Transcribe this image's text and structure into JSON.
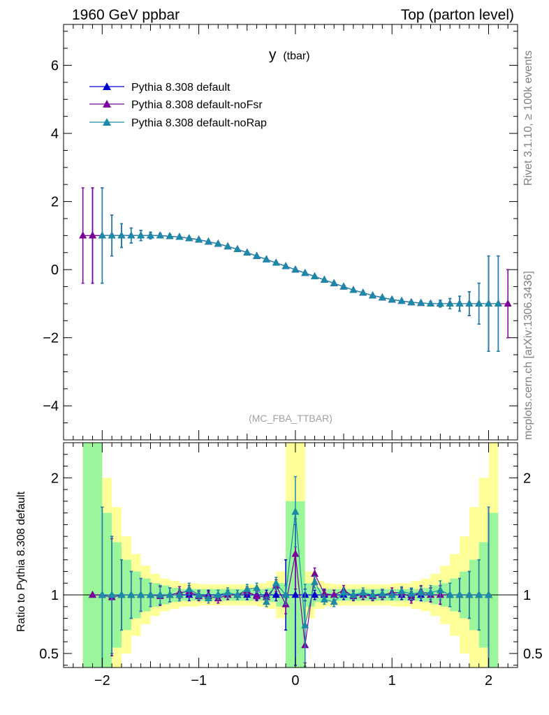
{
  "header": {
    "left": "1960 GeV ppbar",
    "right": "Top (parton level)"
  },
  "side_labels": {
    "top": "Rivet 3.1.10, ≥ 100k events",
    "bottom": "mcplots.cern.ch [arXiv:1306.3436]"
  },
  "plot_title": {
    "main": "y",
    "sub": "(tbar)"
  },
  "analysis_label": "(MC_FBA_TTBAR)",
  "ratio_ylabel": "Ratio to Pythia 8.308 default",
  "colors": {
    "default": "#0000cc",
    "noFsr": "#7b009a",
    "noRap": "#1a8aa6",
    "band_inner": "#9bf59b",
    "band_outer": "#ffff99"
  },
  "chart_data": [
    {
      "type": "line",
      "panel": "main",
      "xlim": [
        -2.4,
        2.3
      ],
      "ylim": [
        -5,
        7.2
      ],
      "yticks": [
        -4,
        -2,
        0,
        2,
        4,
        6
      ],
      "ytick_labels": [
        "−4",
        "−2",
        "0",
        "2",
        "4",
        "6"
      ],
      "legend_position": "top-left",
      "x": [
        -2.2,
        -2.1,
        -2.0,
        -1.9,
        -1.8,
        -1.7,
        -1.6,
        -1.5,
        -1.4,
        -1.3,
        -1.2,
        -1.1,
        -1.0,
        -0.9,
        -0.8,
        -0.7,
        -0.6,
        -0.5,
        -0.4,
        -0.3,
        -0.2,
        -0.1,
        0.0,
        0.1,
        0.2,
        0.3,
        0.4,
        0.5,
        0.6,
        0.7,
        0.8,
        0.9,
        1.0,
        1.1,
        1.2,
        1.3,
        1.4,
        1.5,
        1.6,
        1.7,
        1.8,
        1.9,
        2.0,
        2.1,
        2.2
      ],
      "series": [
        {
          "name": "Pythia 8.308 default",
          "marker": "triangle",
          "values": [
            null,
            1.0,
            1.0,
            1.0,
            1.0,
            1.0,
            1.0,
            1.0,
            1.0,
            0.98,
            0.96,
            0.92,
            0.88,
            0.82,
            0.76,
            0.68,
            0.6,
            0.5,
            0.4,
            0.3,
            0.2,
            0.1,
            0.0,
            -0.1,
            -0.2,
            -0.3,
            -0.4,
            -0.5,
            -0.6,
            -0.68,
            -0.76,
            -0.82,
            -0.88,
            -0.92,
            -0.96,
            -0.98,
            -1.0,
            -1.0,
            -1.0,
            -1.0,
            -1.0,
            -1.0,
            -1.0,
            -1.0,
            null
          ],
          "errors": [
            null,
            1.4,
            1.4,
            0.6,
            0.35,
            0.22,
            0.15,
            0.1,
            0.06,
            0.05,
            0.04,
            0.04,
            0.04,
            0.04,
            0.04,
            0.04,
            0.04,
            0.04,
            0.04,
            0.04,
            0.04,
            0.04,
            0.04,
            0.04,
            0.04,
            0.04,
            0.04,
            0.04,
            0.04,
            0.04,
            0.04,
            0.04,
            0.04,
            0.04,
            0.04,
            0.05,
            0.06,
            0.1,
            0.15,
            0.22,
            0.35,
            0.6,
            1.4,
            1.4,
            null
          ]
        },
        {
          "name": "Pythia 8.308 default-noFsr",
          "marker": "triangle",
          "values": [
            1.0,
            1.0,
            1.0,
            1.0,
            1.0,
            1.0,
            1.0,
            1.0,
            1.0,
            0.98,
            0.96,
            0.92,
            0.88,
            0.82,
            0.76,
            0.68,
            0.6,
            0.5,
            0.4,
            0.3,
            0.2,
            0.1,
            0.0,
            -0.1,
            -0.2,
            -0.3,
            -0.4,
            -0.5,
            -0.6,
            -0.68,
            -0.76,
            -0.82,
            -0.88,
            -0.92,
            -0.96,
            -0.98,
            -1.0,
            -1.0,
            -1.0,
            -1.0,
            -1.0,
            -1.0,
            -1.0,
            -1.0,
            -1.0
          ],
          "errors": [
            1.4,
            1.4,
            1.4,
            0.6,
            0.35,
            0.22,
            0.15,
            0.1,
            0.06,
            0.05,
            0.04,
            0.04,
            0.04,
            0.04,
            0.04,
            0.04,
            0.04,
            0.04,
            0.04,
            0.04,
            0.04,
            0.04,
            0.04,
            0.04,
            0.04,
            0.04,
            0.04,
            0.04,
            0.04,
            0.04,
            0.04,
            0.04,
            0.04,
            0.04,
            0.04,
            0.05,
            0.06,
            0.1,
            0.15,
            0.22,
            0.35,
            0.6,
            1.4,
            1.4,
            1.0
          ]
        },
        {
          "name": "Pythia 8.308 default-noRap",
          "marker": "triangle",
          "values": [
            null,
            null,
            1.0,
            1.0,
            1.0,
            1.0,
            1.0,
            1.0,
            1.0,
            0.98,
            0.96,
            0.92,
            0.88,
            0.82,
            0.76,
            0.68,
            0.6,
            0.5,
            0.4,
            0.3,
            0.2,
            0.1,
            0.0,
            -0.1,
            -0.2,
            -0.3,
            -0.4,
            -0.5,
            -0.6,
            -0.68,
            -0.76,
            -0.82,
            -0.88,
            -0.92,
            -0.96,
            -0.98,
            -1.0,
            -1.0,
            -1.0,
            -1.0,
            -1.0,
            -1.0,
            -1.0,
            -1.0,
            null
          ],
          "errors": [
            null,
            null,
            1.4,
            0.6,
            0.35,
            0.22,
            0.15,
            0.1,
            0.06,
            0.05,
            0.04,
            0.04,
            0.04,
            0.04,
            0.04,
            0.04,
            0.04,
            0.04,
            0.04,
            0.04,
            0.04,
            0.04,
            0.04,
            0.04,
            0.04,
            0.04,
            0.04,
            0.04,
            0.04,
            0.04,
            0.04,
            0.04,
            0.04,
            0.04,
            0.04,
            0.05,
            0.06,
            0.1,
            0.15,
            0.22,
            0.35,
            0.6,
            1.4,
            1.4,
            null
          ]
        }
      ]
    },
    {
      "type": "line",
      "panel": "ratio",
      "xlim": [
        -2.4,
        2.3
      ],
      "ylim": [
        0.38,
        2.3
      ],
      "yticks": [
        0.5,
        1,
        2
      ],
      "ytick_labels": [
        "0.5",
        "1",
        "2"
      ],
      "xticks": [
        -2,
        -1,
        0,
        1,
        2
      ],
      "xtick_labels": [
        "−2",
        "−1",
        "0",
        "1",
        "2"
      ],
      "x": [
        -2.1,
        -2.0,
        -1.9,
        -1.8,
        -1.7,
        -1.6,
        -1.5,
        -1.4,
        -1.3,
        -1.2,
        -1.1,
        -1.0,
        -0.9,
        -0.8,
        -0.7,
        -0.6,
        -0.5,
        -0.4,
        -0.3,
        -0.2,
        -0.1,
        0.0,
        0.1,
        0.2,
        0.3,
        0.4,
        0.5,
        0.6,
        0.7,
        0.8,
        0.9,
        1.0,
        1.1,
        1.2,
        1.3,
        1.4,
        1.5,
        1.6,
        1.7,
        1.8,
        1.9,
        2.0
      ],
      "bands": {
        "edges": [
          -2.2,
          -2.1,
          -2.0,
          -1.9,
          -1.8,
          -1.7,
          -1.6,
          -1.5,
          -1.4,
          -1.3,
          -1.2,
          -1.1,
          -1.0,
          -0.9,
          -0.8,
          -0.7,
          -0.6,
          -0.5,
          -0.4,
          -0.3,
          -0.2,
          -0.1,
          0.0,
          0.1,
          0.2,
          0.3,
          0.4,
          0.5,
          0.6,
          0.7,
          0.8,
          0.9,
          1.0,
          1.1,
          1.2,
          1.3,
          1.4,
          1.5,
          1.6,
          1.7,
          1.8,
          1.9,
          2.0,
          2.1
        ],
        "inner_halfwidth": [
          2.0,
          2.0,
          0.7,
          0.45,
          0.3,
          0.2,
          0.14,
          0.1,
          0.08,
          0.06,
          0.05,
          0.05,
          0.05,
          0.05,
          0.05,
          0.05,
          0.05,
          0.05,
          0.05,
          0.06,
          0.1,
          0.8,
          0.8,
          0.1,
          0.06,
          0.05,
          0.05,
          0.05,
          0.05,
          0.05,
          0.05,
          0.05,
          0.05,
          0.05,
          0.05,
          0.06,
          0.08,
          0.1,
          0.14,
          0.2,
          0.3,
          0.45,
          0.7,
          2.0
        ],
        "outer_halfwidth": [
          2.0,
          2.0,
          1.0,
          0.75,
          0.5,
          0.35,
          0.25,
          0.18,
          0.14,
          0.12,
          0.1,
          0.1,
          0.09,
          0.09,
          0.09,
          0.09,
          0.09,
          0.09,
          0.1,
          0.12,
          0.2,
          2.0,
          2.0,
          0.2,
          0.12,
          0.1,
          0.09,
          0.09,
          0.09,
          0.09,
          0.09,
          0.09,
          0.1,
          0.1,
          0.12,
          0.14,
          0.18,
          0.25,
          0.35,
          0.5,
          0.75,
          1.0,
          2.0,
          2.0
        ]
      },
      "series": [
        {
          "name": "Pythia 8.308 default",
          "values": [
            1,
            1,
            1,
            1,
            1,
            1,
            1,
            1,
            1,
            1,
            1,
            1,
            1,
            1,
            1,
            1,
            1,
            1,
            1,
            1,
            1,
            1,
            1,
            1,
            1,
            1,
            1,
            1,
            1,
            1,
            1,
            1,
            1,
            1,
            1,
            1,
            1,
            1,
            1,
            1,
            1,
            1
          ],
          "errors": [
            0.0,
            0.75,
            0.5,
            0.3,
            0.2,
            0.14,
            0.1,
            0.08,
            0.06,
            0.05,
            0.05,
            0.04,
            0.04,
            0.04,
            0.04,
            0.04,
            0.04,
            0.04,
            0.04,
            0.05,
            0.3,
            0.6,
            0.05,
            0.04,
            0.04,
            0.04,
            0.04,
            0.04,
            0.04,
            0.04,
            0.04,
            0.04,
            0.04,
            0.05,
            0.05,
            0.06,
            0.08,
            0.1,
            0.14,
            0.2,
            0.3,
            0.75
          ]
        },
        {
          "name": "Pythia 8.308 default-noFsr",
          "values": [
            1.0,
            1.0,
            0.98,
            1.0,
            1.0,
            1.0,
            1.0,
            0.99,
            1.0,
            1.02,
            1.03,
            0.99,
            0.99,
            0.97,
            1.0,
            1.0,
            1.03,
            0.99,
            0.98,
            1.08,
            0.92,
            1.35,
            0.57,
            1.18,
            1.01,
            1.0,
            1.04,
            0.99,
            1.0,
            0.99,
            1.0,
            1.02,
            1.02,
            0.98,
            1.03,
            1.0,
            1.0,
            1.0,
            1.0,
            1.0,
            1.0,
            1.0
          ],
          "errors": [
            0.0,
            0.75,
            0.5,
            0.3,
            0.2,
            0.14,
            0.1,
            0.08,
            0.06,
            0.05,
            0.05,
            0.04,
            0.04,
            0.04,
            0.04,
            0.04,
            0.04,
            0.04,
            0.04,
            0.05,
            0.08,
            0.3,
            0.15,
            0.05,
            0.04,
            0.04,
            0.04,
            0.04,
            0.04,
            0.04,
            0.04,
            0.04,
            0.04,
            0.05,
            0.05,
            0.06,
            0.08,
            0.1,
            0.14,
            0.2,
            0.3,
            0.75
          ]
        },
        {
          "name": "Pythia 8.308 default-noRap",
          "values": [
            null,
            1.0,
            1.0,
            1.0,
            1.0,
            1.0,
            1.0,
            1.0,
            1.0,
            1.0,
            1.05,
            1.0,
            0.97,
            1.0,
            1.02,
            1.0,
            1.05,
            1.06,
            0.94,
            1.1,
            1.0,
            1.71,
            0.74,
            1.11,
            0.96,
            0.94,
            1.02,
            1.0,
            1.02,
            1.0,
            1.01,
            1.0,
            1.03,
            1.01,
            1.02,
            1.02,
            1.04,
            1.0,
            1.0,
            1.0,
            1.0,
            1.0
          ],
          "errors": [
            null,
            0.75,
            0.5,
            0.3,
            0.2,
            0.14,
            0.1,
            0.08,
            0.06,
            0.05,
            0.05,
            0.04,
            0.04,
            0.04,
            0.04,
            0.04,
            0.04,
            0.04,
            0.04,
            0.05,
            0.08,
            0.3,
            0.35,
            0.05,
            0.04,
            0.04,
            0.04,
            0.04,
            0.04,
            0.04,
            0.04,
            0.04,
            0.04,
            0.05,
            0.05,
            0.06,
            0.08,
            0.1,
            0.14,
            0.2,
            0.3,
            0.75
          ]
        }
      ]
    }
  ]
}
